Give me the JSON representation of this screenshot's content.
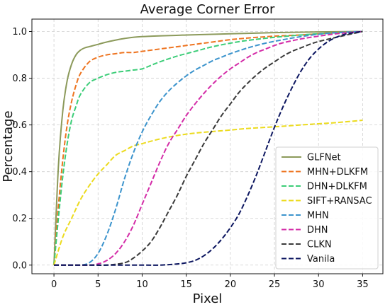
{
  "chart_data": {
    "type": "line",
    "title": "Average Corner Error",
    "xlabel": "Pixel",
    "ylabel": "Percentage",
    "xlim": [
      -2.5,
      37.3
    ],
    "ylim": [
      -0.037,
      1.053
    ],
    "xticks": [
      0,
      5,
      10,
      15,
      20,
      25,
      30,
      35
    ],
    "yticks": [
      0.0,
      0.2,
      0.4,
      0.6,
      0.8,
      1.0
    ],
    "xtick_labels": [
      "0",
      "5",
      "10",
      "15",
      "20",
      "25",
      "30",
      "35"
    ],
    "ytick_labels": [
      "0.0",
      "0.2",
      "0.4",
      "0.6",
      "0.8",
      "1.0"
    ],
    "grid": true,
    "legend_position": "lower-right",
    "series": [
      {
        "name": "GLFNet",
        "color": "#8c9a5b",
        "dash": "solid",
        "x": [
          0,
          0.5,
          1,
          1.5,
          2,
          2.5,
          3,
          3.5,
          4,
          5,
          6,
          8,
          10,
          15,
          20,
          25,
          30,
          35
        ],
        "y": [
          0.0,
          0.42,
          0.66,
          0.79,
          0.86,
          0.9,
          0.92,
          0.93,
          0.935,
          0.945,
          0.955,
          0.97,
          0.978,
          0.985,
          0.99,
          0.995,
          0.998,
          1.0
        ]
      },
      {
        "name": "MHN+DLKFM",
        "color": "#ee7420",
        "dash": "dashed",
        "x": [
          0,
          0.5,
          1,
          1.5,
          2,
          2.5,
          3,
          4,
          5,
          6,
          7,
          8,
          9,
          10,
          12,
          14,
          16,
          18,
          20,
          22,
          25,
          28,
          30,
          32,
          35
        ],
        "y": [
          0.0,
          0.25,
          0.45,
          0.6,
          0.7,
          0.77,
          0.82,
          0.87,
          0.89,
          0.9,
          0.905,
          0.91,
          0.91,
          0.915,
          0.925,
          0.935,
          0.945,
          0.955,
          0.965,
          0.972,
          0.98,
          0.985,
          0.99,
          0.995,
          1.0
        ]
      },
      {
        "name": "DHN+DLKFM",
        "color": "#3ccd78",
        "dash": "dashed",
        "x": [
          0,
          0.5,
          1,
          1.5,
          2,
          2.5,
          3,
          4,
          5,
          6,
          7,
          8,
          9,
          10,
          11,
          12,
          14,
          16,
          18,
          20,
          22,
          25,
          28,
          30,
          35
        ],
        "y": [
          0.0,
          0.2,
          0.38,
          0.52,
          0.62,
          0.68,
          0.73,
          0.78,
          0.8,
          0.815,
          0.825,
          0.83,
          0.835,
          0.84,
          0.855,
          0.87,
          0.895,
          0.915,
          0.935,
          0.95,
          0.962,
          0.975,
          0.985,
          0.99,
          1.0
        ]
      },
      {
        "name": "SIFT+RANSAC",
        "color": "#ecdb1e",
        "dash": "dashed",
        "x": [
          0,
          1,
          2,
          3,
          4,
          5,
          6,
          7,
          8,
          9,
          10,
          12,
          14,
          16,
          18,
          20,
          22,
          25,
          28,
          30,
          32,
          35
        ],
        "y": [
          0.0,
          0.12,
          0.2,
          0.28,
          0.34,
          0.39,
          0.43,
          0.47,
          0.49,
          0.51,
          0.52,
          0.54,
          0.555,
          0.565,
          0.572,
          0.578,
          0.585,
          0.592,
          0.6,
          0.605,
          0.61,
          0.62
        ]
      },
      {
        "name": "MHN",
        "color": "#3c94cd",
        "dash": "dashed",
        "x": [
          0,
          1,
          2,
          3,
          4,
          5,
          6,
          7,
          8,
          9,
          10,
          11,
          12,
          13,
          14,
          15,
          16,
          17,
          18,
          19,
          20,
          22,
          24,
          26,
          28,
          30,
          32,
          35
        ],
        "y": [
          0.0,
          0.0,
          0.0,
          0.0,
          0.01,
          0.05,
          0.13,
          0.24,
          0.37,
          0.48,
          0.57,
          0.64,
          0.7,
          0.745,
          0.78,
          0.81,
          0.835,
          0.855,
          0.875,
          0.89,
          0.905,
          0.93,
          0.95,
          0.965,
          0.978,
          0.988,
          0.995,
          1.0
        ]
      },
      {
        "name": "DHN",
        "color": "#d42da8",
        "dash": "dashed",
        "x": [
          0,
          2,
          4,
          5,
          6,
          7,
          8,
          9,
          10,
          11,
          12,
          13,
          14,
          15,
          16,
          17,
          18,
          19,
          20,
          21,
          22,
          23,
          24,
          25,
          26,
          28,
          30,
          32,
          35
        ],
        "y": [
          0.0,
          0.0,
          0.0,
          0.005,
          0.02,
          0.05,
          0.1,
          0.17,
          0.26,
          0.35,
          0.44,
          0.52,
          0.58,
          0.64,
          0.69,
          0.735,
          0.775,
          0.81,
          0.84,
          0.865,
          0.89,
          0.91,
          0.925,
          0.94,
          0.952,
          0.968,
          0.98,
          0.99,
          1.0
        ]
      },
      {
        "name": "CLKN",
        "color": "#3a3a3a",
        "dash": "dashed",
        "x": [
          0,
          4,
          6,
          8,
          9,
          10,
          11,
          12,
          13,
          14,
          15,
          16,
          17,
          18,
          19,
          20,
          21,
          22,
          23,
          24,
          25,
          26,
          27,
          28,
          29,
          30,
          32,
          35
        ],
        "y": [
          0.0,
          0.0,
          0.0,
          0.01,
          0.03,
          0.06,
          0.1,
          0.16,
          0.23,
          0.3,
          0.38,
          0.45,
          0.52,
          0.58,
          0.64,
          0.69,
          0.74,
          0.78,
          0.815,
          0.845,
          0.87,
          0.895,
          0.915,
          0.93,
          0.945,
          0.957,
          0.975,
          1.0
        ]
      },
      {
        "name": "Vanila",
        "color": "#0c1660",
        "dash": "dashed",
        "x": [
          0,
          5,
          10,
          12,
          14,
          15,
          16,
          17,
          18,
          19,
          20,
          21,
          22,
          23,
          24,
          25,
          26,
          27,
          28,
          29,
          30,
          31,
          32,
          33,
          34,
          35
        ],
        "y": [
          0.0,
          0.0,
          0.0,
          0.0,
          0.005,
          0.01,
          0.02,
          0.04,
          0.07,
          0.11,
          0.16,
          0.22,
          0.3,
          0.39,
          0.49,
          0.59,
          0.68,
          0.76,
          0.83,
          0.885,
          0.925,
          0.955,
          0.975,
          0.988,
          0.995,
          1.0
        ]
      }
    ]
  }
}
